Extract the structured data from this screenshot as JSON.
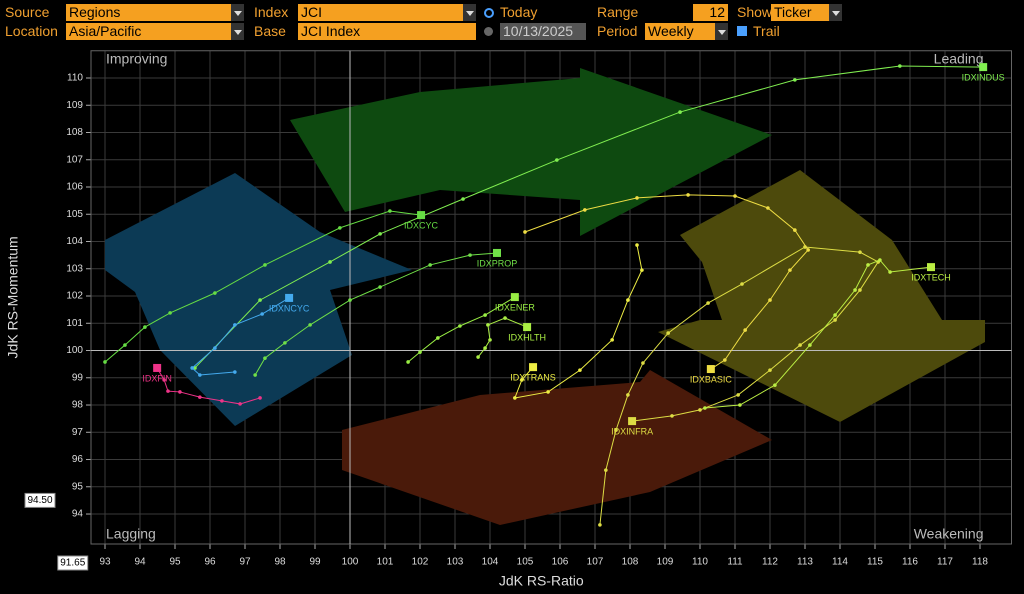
{
  "toolbar": {
    "source": {
      "label": "Source",
      "value": "Regions"
    },
    "location": {
      "label": "Location",
      "value": "Asia/Pacific"
    },
    "index": {
      "label": "Index",
      "value": "JCI"
    },
    "base": {
      "label": "Base",
      "value": "JCI Index"
    },
    "today": "Today",
    "date": "10/13/2025",
    "range": {
      "label": "Range",
      "value": "12"
    },
    "period": {
      "label": "Period",
      "value": "Weekly"
    },
    "show": {
      "label": "Show",
      "value": "Ticker"
    },
    "trail": "Trail"
  },
  "chart_data": {
    "type": "rrg",
    "x_label": "JdK RS-Ratio",
    "y_label": "JdK RS-Momentum",
    "quadrants": {
      "top_left": "Improving",
      "top_right": "Leading",
      "bottom_left": "Lagging",
      "bottom_right": "Weakening"
    },
    "center": {
      "x": 100,
      "y": 100
    },
    "cursor": {
      "y": {
        "value": 94.5,
        "label": "94.50"
      },
      "x": {
        "value": 91.65,
        "label": "91.65"
      }
    },
    "xlim": [
      92.6,
      118.9
    ],
    "ylim": [
      92.9,
      111.0
    ],
    "xticks": [
      93,
      94,
      95,
      96,
      97,
      98,
      99,
      100,
      101,
      102,
      103,
      104,
      105,
      106,
      107,
      108,
      109,
      110,
      111,
      112,
      113,
      114,
      115,
      116,
      117,
      118
    ],
    "yticks": [
      94,
      95,
      96,
      97,
      98,
      99,
      100,
      101,
      102,
      103,
      104,
      105,
      106,
      107,
      108,
      109,
      110
    ],
    "grid": true,
    "series": [
      {
        "name": "IDXINDUS",
        "color": "#80ee50",
        "x": [
          95.57,
          97.43,
          99.43,
          100.86,
          103.23,
          105.91,
          109.43,
          112.71,
          115.71,
          118.09
        ],
        "values": [
          99.36,
          101.85,
          103.25,
          104.28,
          105.56,
          106.99,
          108.75,
          109.93,
          110.44,
          110.4
        ]
      },
      {
        "name": "IDXCYC",
        "color": "#66dd44",
        "x": [
          93.0,
          93.57,
          94.14,
          94.86,
          96.14,
          97.57,
          99.71,
          101.14,
          102.03
        ],
        "values": [
          99.58,
          100.2,
          100.86,
          101.38,
          102.11,
          103.14,
          104.5,
          105.12,
          104.97
        ]
      },
      {
        "name": "IDXPROP",
        "color": "#70e048",
        "x": [
          97.29,
          97.57,
          98.14,
          98.86,
          100.0,
          100.86,
          102.29,
          103.43,
          104.2
        ],
        "values": [
          99.1,
          99.72,
          100.28,
          100.94,
          101.85,
          102.33,
          103.14,
          103.5,
          103.58
        ]
      },
      {
        "name": "IDXNCYC",
        "color": "#44aaee",
        "x": [
          96.71,
          95.71,
          95.49,
          96.14,
          96.71,
          97.49,
          98.26
        ],
        "values": [
          99.21,
          99.1,
          99.36,
          100.09,
          100.94,
          101.34,
          101.93
        ]
      },
      {
        "name": "IDXFIN",
        "color": "#ee3388",
        "x": [
          97.43,
          96.86,
          96.34,
          95.71,
          95.14,
          94.8,
          94.69,
          94.49
        ],
        "values": [
          98.26,
          98.04,
          98.15,
          98.29,
          98.48,
          98.51,
          98.92,
          99.36
        ]
      },
      {
        "name": "IDXENER",
        "color": "#99ee44",
        "x": [
          101.66,
          102.0,
          102.51,
          103.14,
          103.86,
          104.71
        ],
        "values": [
          99.58,
          99.94,
          100.46,
          100.9,
          101.3,
          101.96
        ]
      },
      {
        "name": "IDXHLTH",
        "color": "#aaee44",
        "x": [
          103.66,
          103.86,
          104.0,
          103.94,
          104.43,
          105.06
        ],
        "values": [
          99.76,
          100.09,
          100.39,
          100.94,
          101.19,
          100.86
        ]
      },
      {
        "name": "IDXTRANS",
        "color": "#eeee44",
        "x": [
          108.2,
          108.34,
          107.94,
          107.49,
          106.57,
          105.66,
          104.71,
          104.91,
          105.23
        ],
        "values": [
          103.87,
          102.95,
          101.85,
          100.39,
          99.28,
          98.48,
          98.26,
          98.92,
          99.39
        ]
      },
      {
        "name": "IDXINFRA",
        "color": "#dddd44",
        "x": [
          107.14,
          107.31,
          107.6,
          107.94,
          108.37,
          109.09,
          110.23,
          111.2,
          113.0,
          114.57,
          115.09,
          114.57,
          113.86,
          112.86,
          112.0,
          111.09,
          110.0,
          109.2,
          108.06
        ],
        "values": [
          93.6,
          95.61,
          97.08,
          98.37,
          99.54,
          100.64,
          101.74,
          102.44,
          103.8,
          103.61,
          103.25,
          102.22,
          101.12,
          100.2,
          99.28,
          98.37,
          97.82,
          97.6,
          97.41
        ]
      },
      {
        "name": "IDXBASIC",
        "color": "#eedd44",
        "x": [
          105.0,
          106.71,
          108.2,
          109.66,
          111.0,
          111.94,
          112.71,
          113.09,
          112.57,
          112.0,
          111.29,
          110.71,
          110.31
        ],
        "values": [
          104.35,
          105.16,
          105.6,
          105.71,
          105.67,
          105.23,
          104.42,
          103.69,
          102.95,
          101.85,
          100.75,
          99.65,
          99.32
        ]
      },
      {
        "name": "IDXTECH",
        "color": "#bbee44",
        "x": [
          110.14,
          111.14,
          112.14,
          113.14,
          113.86,
          114.43,
          114.8,
          115.14,
          115.43,
          116.6
        ],
        "values": [
          97.89,
          98.0,
          98.73,
          100.2,
          101.3,
          102.22,
          103.14,
          103.32,
          102.88,
          103.06
        ]
      }
    ]
  }
}
